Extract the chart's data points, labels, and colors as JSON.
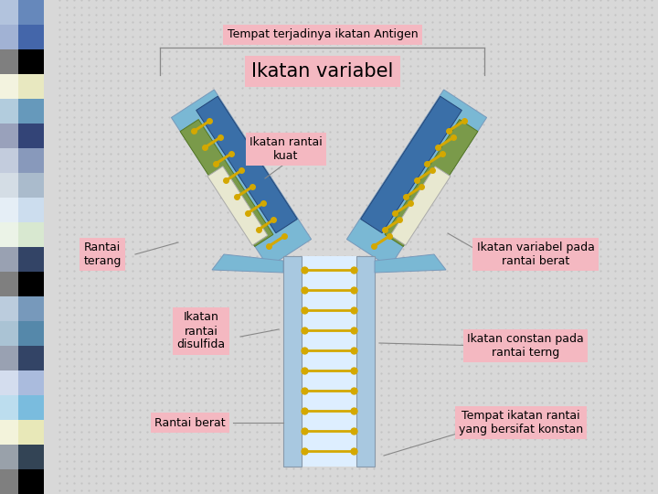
{
  "labels": {
    "antigen_site": "Tempat terjadinya ikatan Antigen",
    "ikatan_variabel": "Ikatan variabel",
    "ikatan_rantai_kuat": "Ikatan rantai\nkuat",
    "rantai_terang": "Rantai\nterang",
    "ikatan_rantai_disulfida": "Ikatan\nrantai\ndisulfida",
    "ikatan_variabel_pada": "Ikatan variabel pada\nrantai berat",
    "ikatan_constan": "Ikatan constan pada\nrantai terng",
    "rantai_berat": "Rantai berat",
    "tempat_ikatan": "Tempat ikatan rantai\nyang bersifat konstan"
  },
  "colors": {
    "label_box_bg": "#f4b8c1",
    "label_box_edge": "#cc9999",
    "heavy_chain_blue": "#7ab8d4",
    "dark_blue": "#3a6fa8",
    "olive_green": "#7a9a4a",
    "cream": "#e8e8d0",
    "gold": "#d4a800",
    "background": "#d8d8d8",
    "dot_color": "#c0c0c0",
    "line_color": "#888888",
    "stem_blue": "#a8c8e0",
    "stem_mid": "#ffffff"
  },
  "strip_colors": [
    "#6688bb",
    "#4466aa",
    "#000000",
    "#e8e8c0",
    "#6699bb",
    "#334477",
    "#8899bb",
    "#aabbcc",
    "#ccddee",
    "#d8e8d0",
    "#334466",
    "#000000",
    "#7799bb",
    "#5588aa",
    "#334466",
    "#aabbdd",
    "#7abcde",
    "#e8e8b8",
    "#334455",
    "#000000"
  ]
}
